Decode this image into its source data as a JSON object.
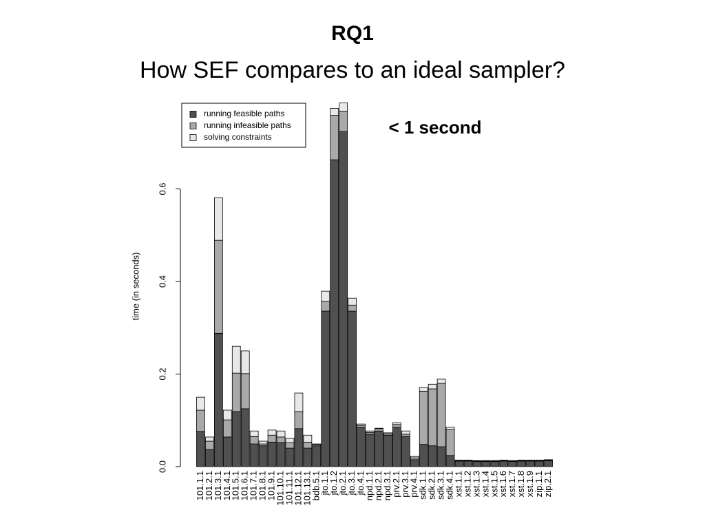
{
  "chart_data": {
    "type": "bar",
    "stacked": true,
    "title": "RQ1",
    "subtitle": "How SEF compares to an ideal sampler?",
    "annotation": "< 1 second",
    "y_label": "time (in seconds)",
    "legend_position": "top-left",
    "ylim": [
      0,
      0.8
    ],
    "yticks": [
      {
        "value": 0,
        "label": "0.0"
      },
      0.2,
      0.4,
      0.6
    ],
    "categories": [
      "101.1.1",
      "101.2.1",
      "101.3.1",
      "101.4.1",
      "101.5.1",
      "101.6.1",
      "101.7.1",
      "101.8.1",
      "101.9.1",
      "101.10.1",
      "101.11.1",
      "101.12.1",
      "101.13.1",
      "bdb.5.1",
      "jto.1.1",
      "jto.1.2",
      "jto.2.1",
      "jto.3.1",
      "jto.4.1",
      "npd.1.1",
      "npd.2.1",
      "npd.3.1",
      "prv.2.1",
      "prv.3.1",
      "prv.4.1",
      "sdk.1.1",
      "sdk.2.1",
      "sdk.3.1",
      "sdk.4.1",
      "xst.1.1",
      "xst.1.2",
      "xst.1.3",
      "xst.1.4",
      "xst.1.5",
      "xst.1.6",
      "xst.1.7",
      "xst.1.8",
      "xst.1.9",
      "zip.1.1",
      "zip.2.1"
    ],
    "series": [
      {
        "name": "running feasible paths",
        "color": "#505050",
        "values": [
          0.076,
          0.037,
          0.288,
          0.064,
          0.119,
          0.125,
          0.049,
          0.045,
          0.053,
          0.052,
          0.04,
          0.082,
          0.04,
          0.045,
          0.336,
          0.663,
          0.724,
          0.336,
          0.085,
          0.07,
          0.077,
          0.068,
          0.085,
          0.065,
          0.015,
          0.048,
          0.045,
          0.043,
          0.024,
          0.012,
          0.012,
          0.011,
          0.011,
          0.011,
          0.012,
          0.011,
          0.012,
          0.012,
          0.012,
          0.013
        ]
      },
      {
        "name": "running infeasible paths",
        "color": "#a9a9a9",
        "values": [
          0.046,
          0.018,
          0.201,
          0.037,
          0.083,
          0.076,
          0.016,
          0.004,
          0.015,
          0.012,
          0.012,
          0.037,
          0.013,
          0.003,
          0.021,
          0.096,
          0.044,
          0.013,
          0.004,
          0.004,
          0.005,
          0.003,
          0.006,
          0.005,
          0.004,
          0.115,
          0.123,
          0.137,
          0.056,
          0.001,
          0.001,
          0.001,
          0.001,
          0.001,
          0.001,
          0.001,
          0.001,
          0.001,
          0.001,
          0.001
        ]
      },
      {
        "name": "solving constraints",
        "color": "#e8e8e8",
        "values": [
          0.028,
          0.009,
          0.092,
          0.021,
          0.058,
          0.049,
          0.012,
          0.006,
          0.011,
          0.013,
          0.009,
          0.04,
          0.015,
          0.001,
          0.022,
          0.015,
          0.018,
          0.015,
          0.003,
          0.003,
          0.001,
          0.002,
          0.004,
          0.007,
          0.003,
          0.008,
          0.01,
          0.009,
          0.005,
          0.001,
          0.001,
          0.001,
          0.001,
          0.001,
          0.001,
          0.001,
          0.001,
          0.001,
          0.001,
          0.001
        ]
      }
    ]
  }
}
